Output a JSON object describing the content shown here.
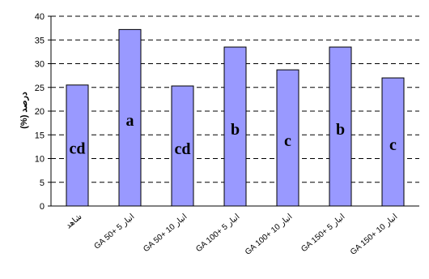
{
  "chart_data": {
    "type": "bar",
    "categories": [
      "شاهد",
      "GA 50+ 5 انبار",
      "GA 50+ 10 انبار",
      "GA 100+ 5 انبار",
      "GA 100+ 10 انبار",
      "GA 150+ 5 انبار",
      "GA 150+ 10 انبار"
    ],
    "values": [
      25.5,
      37.2,
      25.3,
      33.5,
      28.7,
      33.5,
      27.0
    ],
    "letters": [
      "cd",
      "a",
      "cd",
      "b",
      "c",
      "b",
      "c"
    ],
    "ylabel": "درصد (%)",
    "ylim": [
      0,
      40
    ],
    "yticks": [
      0,
      5,
      10,
      15,
      20,
      25,
      30,
      35,
      40
    ],
    "grid": true,
    "bar_color": "#9999ff",
    "bar_edge": "#000000"
  }
}
